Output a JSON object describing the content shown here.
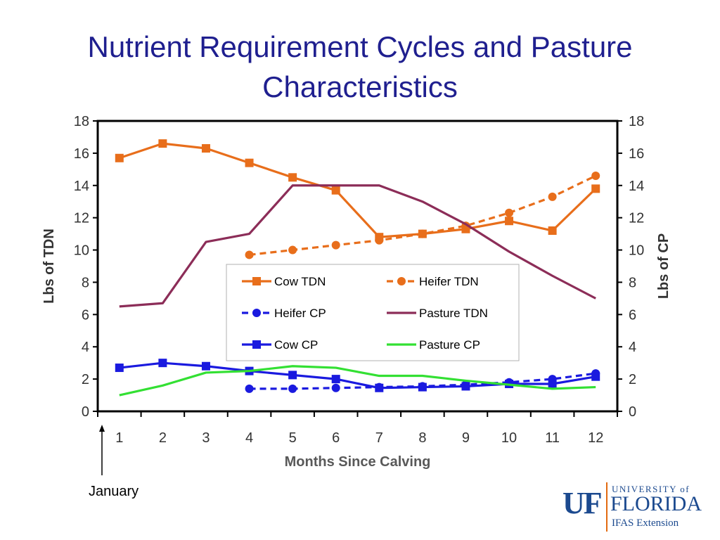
{
  "slide": {
    "title_line1": "Nutrient Requirement Cycles and Pasture",
    "title_line2": "Characteristics",
    "annotation": "January"
  },
  "logo": {
    "text_uf": "UF",
    "text_university": "UNIVERSITY of",
    "text_florida": "FLORIDA",
    "text_ifas": "IFAS Extension",
    "color": "#1c4a8f",
    "accent": "#e26a10"
  },
  "chart_data": {
    "type": "line",
    "xlabel": "Months Since Calving",
    "ylabel": "Lbs of TDN",
    "y2label": "Lbs of CP",
    "x": [
      1,
      2,
      3,
      4,
      5,
      6,
      7,
      8,
      9,
      10,
      11,
      12
    ],
    "ylim": [
      0,
      18
    ],
    "y2lim": [
      0,
      18
    ],
    "yticks": [
      0,
      2,
      4,
      6,
      8,
      10,
      12,
      14,
      16,
      18
    ],
    "legend_position": "center",
    "series": [
      {
        "name": "Cow TDN",
        "color": "#e86e1b",
        "dash": "solid",
        "marker": "square",
        "x": [
          1,
          2,
          3,
          4,
          5,
          6,
          7,
          8,
          9,
          10,
          11,
          12
        ],
        "values": [
          15.7,
          16.6,
          16.3,
          15.4,
          14.5,
          13.7,
          10.8,
          11.0,
          11.3,
          11.8,
          11.2,
          13.8
        ]
      },
      {
        "name": "Heifer TDN",
        "color": "#e86e1b",
        "dash": "dashed",
        "marker": "circle",
        "x": [
          4,
          5,
          6,
          7,
          8,
          9,
          10,
          11,
          12
        ],
        "values": [
          9.7,
          10.0,
          10.3,
          10.6,
          11.0,
          11.5,
          12.3,
          13.3,
          14.6
        ]
      },
      {
        "name": "Heifer CP",
        "color": "#1a1adf",
        "dash": "dashed",
        "marker": "circle",
        "x": [
          4,
          5,
          6,
          7,
          8,
          9,
          10,
          11,
          12
        ],
        "values": [
          1.4,
          1.4,
          1.45,
          1.5,
          1.55,
          1.65,
          1.8,
          2.0,
          2.35
        ]
      },
      {
        "name": "Pasture TDN",
        "color": "#8c2d58",
        "dash": "solid",
        "marker": "none",
        "x": [
          1,
          2,
          3,
          4,
          5,
          6,
          7,
          8,
          9,
          10,
          11,
          12
        ],
        "values": [
          6.5,
          6.7,
          10.5,
          11.0,
          14.0,
          14.0,
          14.0,
          13.0,
          11.6,
          9.9,
          8.4,
          7.0
        ]
      },
      {
        "name": "Cow CP",
        "color": "#1a1adf",
        "dash": "solid",
        "marker": "square",
        "x": [
          1,
          2,
          3,
          4,
          5,
          6,
          7,
          8,
          9,
          10,
          11,
          12
        ],
        "values": [
          2.7,
          3.0,
          2.8,
          2.5,
          2.25,
          2.0,
          1.45,
          1.5,
          1.55,
          1.7,
          1.7,
          2.15
        ]
      },
      {
        "name": "Pasture CP",
        "color": "#33e033",
        "dash": "solid",
        "marker": "none",
        "x": [
          1,
          2,
          3,
          4,
          5,
          6,
          7,
          8,
          9,
          10,
          11,
          12
        ],
        "values": [
          1.0,
          1.6,
          2.4,
          2.5,
          2.8,
          2.7,
          2.2,
          2.2,
          1.9,
          1.65,
          1.4,
          1.5
        ]
      }
    ]
  }
}
